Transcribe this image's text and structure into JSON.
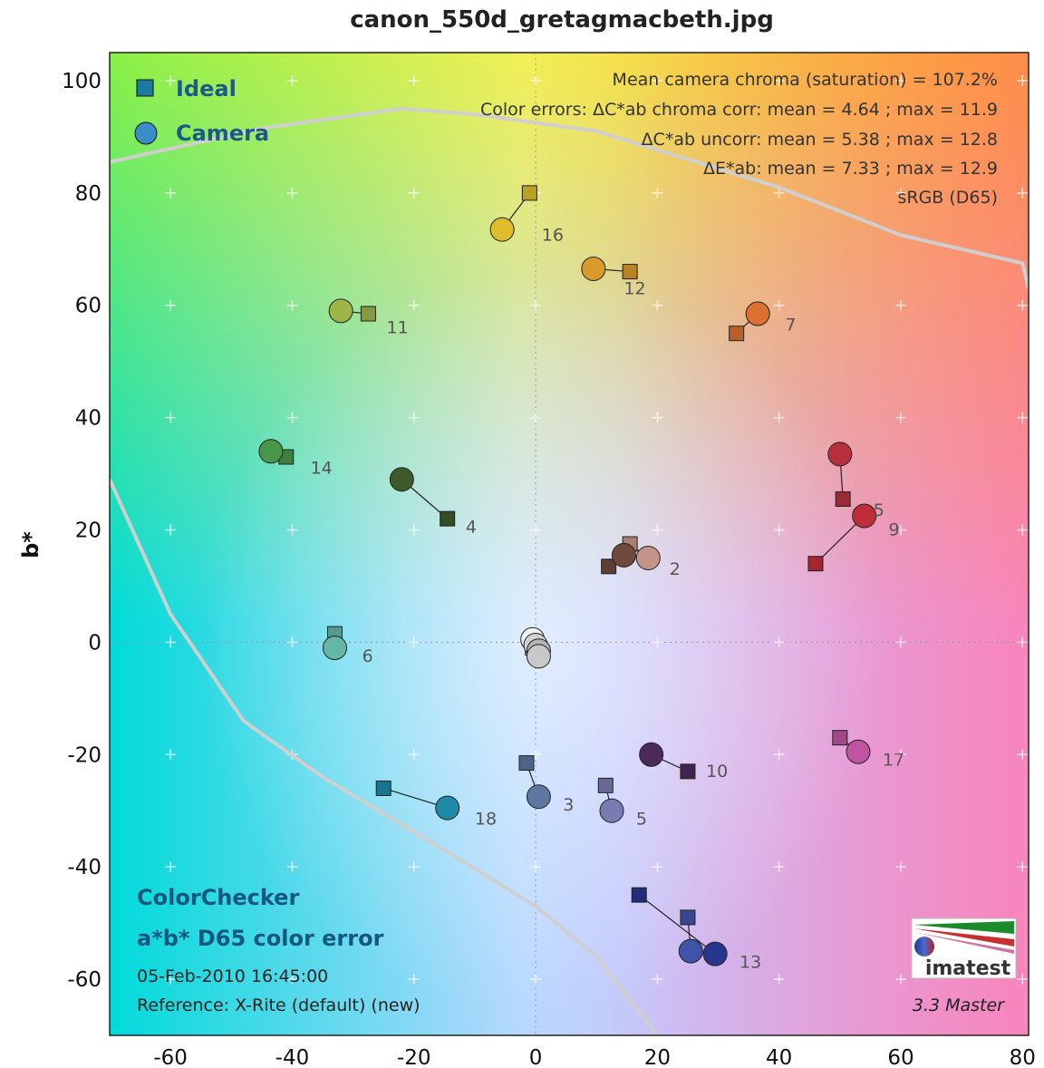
{
  "chart_data": {
    "type": "scatter",
    "title": "canon_550d_gretagmacbeth.jpg",
    "xlabel": "",
    "ylabel": "b*",
    "xlim": [
      -70,
      81
    ],
    "ylim": [
      -70,
      105
    ],
    "xticks": [
      "-60",
      "-40",
      "-20",
      "0",
      "20",
      "40",
      "60",
      "80"
    ],
    "yticks": [
      "100",
      "80",
      "60",
      "40",
      "20",
      "0",
      "-20",
      "-40",
      "-60"
    ],
    "legend": {
      "placement": "top-left",
      "entries": [
        {
          "name": "Ideal",
          "marker": "square"
        },
        {
          "name": "Camera",
          "marker": "circle"
        }
      ]
    },
    "annotations": {
      "saturation": "Mean camera chroma (saturation) = 107.2%",
      "err_corr": "Color errors: ΔC*ab chroma corr:  mean = 4.64 ;  max = 11.9",
      "err_uncorr": "ΔC*ab uncorr:  mean = 5.38 ;  max = 12.8",
      "err_de": "ΔE*ab:  mean = 7.33 ;  max = 12.9",
      "colorspace": "sRGB (D65)"
    },
    "info": {
      "line1": "ColorChecker",
      "line2": "a*b* D65 color error",
      "date": "05-Feb-2010 16:45:00",
      "reference": "Reference: X-Rite (default) (new)",
      "version": "3.3  Master",
      "logo": "imatest"
    },
    "patches": [
      {
        "id": "2",
        "ideal": [
          15.5,
          17.5
        ],
        "camera": [
          18.5,
          15
        ],
        "color": "#c49587"
      },
      {
        "id": "1",
        "ideal": [
          12,
          13.5
        ],
        "camera": [
          14.5,
          15.5
        ],
        "color": "#6f4a3c"
      },
      {
        "id": "3",
        "ideal": [
          -1.5,
          -21.5
        ],
        "camera": [
          0.5,
          -27.5
        ],
        "color": "#5d77a0"
      },
      {
        "id": "4",
        "ideal": [
          -14.5,
          22
        ],
        "camera": [
          -22,
          29
        ],
        "color": "#3e5a2b"
      },
      {
        "id": "5",
        "ideal": [
          11.5,
          -25.5
        ],
        "camera": [
          12.5,
          -30
        ],
        "color": "#7a7bb0"
      },
      {
        "id": "6",
        "ideal": [
          -33,
          1.5
        ],
        "camera": [
          -33,
          -1
        ],
        "color": "#64b7a5"
      },
      {
        "id": "7",
        "ideal": [
          33,
          55
        ],
        "camera": [
          36.5,
          58.5
        ],
        "color": "#dc7030"
      },
      {
        "id": "8",
        "ideal": [
          25,
          -49
        ],
        "camera": [
          25.5,
          -55
        ],
        "color": "#3f53a8"
      },
      {
        "id": "9",
        "ideal": [
          50.5,
          25.5
        ],
        "camera": [
          50,
          33.5
        ],
        "color": "#b8303c"
      },
      {
        "id": "10",
        "ideal": [
          25,
          -23
        ],
        "camera": [
          19,
          -20
        ],
        "color": "#4b2a5a"
      },
      {
        "id": "11",
        "ideal": [
          -27.5,
          58.5
        ],
        "camera": [
          -32,
          59
        ],
        "color": "#9fb548"
      },
      {
        "id": "12",
        "ideal": [
          15.5,
          66
        ],
        "camera": [
          9.5,
          66.5
        ],
        "color": "#d99a2a"
      },
      {
        "id": "13",
        "ideal": [
          17,
          -45
        ],
        "camera": [
          29.5,
          -55.5
        ],
        "color": "#27358e"
      },
      {
        "id": "14",
        "ideal": [
          -41,
          33
        ],
        "camera": [
          -43.5,
          34
        ],
        "color": "#4b974a"
      },
      {
        "id": "15",
        "ideal": [
          46,
          14
        ],
        "camera": [
          54,
          22.5
        ],
        "color": "#c02d38"
      },
      {
        "id": "16",
        "ideal": [
          -1,
          80
        ],
        "camera": [
          -5.5,
          73.5
        ],
        "color": "#ddbd2a"
      },
      {
        "id": "17",
        "ideal": [
          50,
          -17
        ],
        "camera": [
          53,
          -19.5
        ],
        "color": "#c054a0"
      },
      {
        "id": "18",
        "ideal": [
          -25,
          -26
        ],
        "camera": [
          -14.5,
          -29.5
        ],
        "color": "#1f8aa8"
      },
      {
        "id": "19",
        "ideal": [
          -0.5,
          0.5
        ],
        "camera": [
          -0.5,
          0.5
        ],
        "color": "#f2f2f2"
      },
      {
        "id": "20",
        "ideal": [
          -0.5,
          0
        ],
        "camera": [
          0,
          -0.5
        ],
        "color": "#d2d2d2"
      },
      {
        "id": "21",
        "ideal": [
          -0.5,
          -0.5
        ],
        "camera": [
          0.5,
          -1.5
        ],
        "color": "#b5b5b5"
      },
      {
        "id": "22",
        "ideal": [
          -0.5,
          -1
        ],
        "camera": [
          0.5,
          -2.5
        ],
        "color": "#c8c8c8"
      }
    ],
    "visible_labels": [
      {
        "text": "16",
        "at": [
          1,
          71.5
        ]
      },
      {
        "text": "12",
        "at": [
          14.5,
          62
        ]
      },
      {
        "text": "7",
        "at": [
          41,
          55.5
        ]
      },
      {
        "text": "11",
        "at": [
          -24.5,
          55
        ]
      },
      {
        "text": "14",
        "at": [
          -37,
          30
        ]
      },
      {
        "text": "4",
        "at": [
          -11.5,
          19.5
        ]
      },
      {
        "text": "5",
        "at": [
          55.5,
          22.5
        ]
      },
      {
        "text": "9",
        "at": [
          58,
          19
        ]
      },
      {
        "text": "2",
        "at": [
          22,
          12
        ]
      },
      {
        "text": "6",
        "at": [
          -28.5,
          -3.5
        ]
      },
      {
        "text": "10",
        "at": [
          28,
          -24
        ]
      },
      {
        "text": "17",
        "at": [
          57,
          -22
        ]
      },
      {
        "text": "3",
        "at": [
          4.5,
          -30
        ]
      },
      {
        "text": "5",
        "at": [
          16.5,
          -32.5
        ]
      },
      {
        "text": "18",
        "at": [
          -10,
          -32.5
        ]
      },
      {
        "text": "13",
        "at": [
          33.5,
          -58
        ]
      }
    ],
    "gamut_boundary": [
      [
        -70,
        85.5
      ],
      [
        -45,
        91.5
      ],
      [
        -22,
        95
      ],
      [
        -10,
        94
      ],
      [
        10,
        91
      ],
      [
        40,
        81
      ],
      [
        60,
        72.5
      ],
      [
        80,
        67.5
      ],
      [
        81,
        63
      ]
    ],
    "gamut_boundary_lower": [
      [
        -70,
        29
      ],
      [
        -60,
        5
      ],
      [
        -48,
        -14
      ],
      [
        -35,
        -24
      ],
      [
        -15,
        -37
      ],
      [
        0,
        -47
      ],
      [
        10,
        -56
      ],
      [
        20,
        -70
      ]
    ],
    "grid": "dotted-axes"
  }
}
